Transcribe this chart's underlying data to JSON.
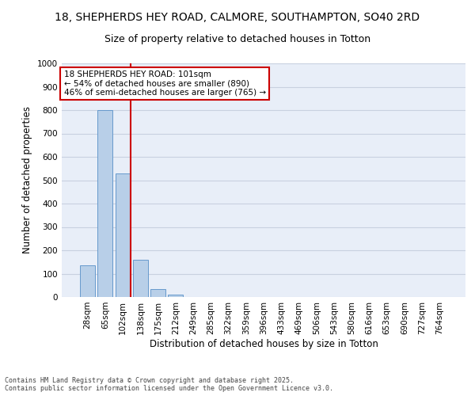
{
  "title_line1": "18, SHEPHERDS HEY ROAD, CALMORE, SOUTHAMPTON, SO40 2RD",
  "title_line2": "Size of property relative to detached houses in Totton",
  "xlabel": "Distribution of detached houses by size in Totton",
  "ylabel": "Number of detached properties",
  "categories": [
    "28sqm",
    "65sqm",
    "102sqm",
    "138sqm",
    "175sqm",
    "212sqm",
    "249sqm",
    "285sqm",
    "322sqm",
    "359sqm",
    "396sqm",
    "433sqm",
    "469sqm",
    "506sqm",
    "543sqm",
    "580sqm",
    "616sqm",
    "653sqm",
    "690sqm",
    "727sqm",
    "764sqm"
  ],
  "values": [
    135,
    800,
    530,
    160,
    35,
    10,
    0,
    0,
    0,
    0,
    0,
    0,
    0,
    0,
    0,
    0,
    0,
    0,
    0,
    0,
    0
  ],
  "bar_color": "#b8cfe8",
  "bar_edge_color": "#6699cc",
  "vline_x_index": 2,
  "vline_color": "#cc0000",
  "annotation_text": "18 SHEPHERDS HEY ROAD: 101sqm\n← 54% of detached houses are smaller (890)\n46% of semi-detached houses are larger (765) →",
  "annotation_box_color": "#ffffff",
  "annotation_box_edge_color": "#cc0000",
  "ylim": [
    0,
    1000
  ],
  "yticks": [
    0,
    100,
    200,
    300,
    400,
    500,
    600,
    700,
    800,
    900,
    1000
  ],
  "footer_line1": "Contains HM Land Registry data © Crown copyright and database right 2025.",
  "footer_line2": "Contains public sector information licensed under the Open Government Licence v3.0.",
  "background_color": "#e8eef8",
  "grid_color": "#c8d0e0",
  "title_fontsize": 10,
  "subtitle_fontsize": 9,
  "axis_label_fontsize": 8.5,
  "tick_fontsize": 7.5,
  "annotation_fontsize": 7.5,
  "footer_fontsize": 6
}
